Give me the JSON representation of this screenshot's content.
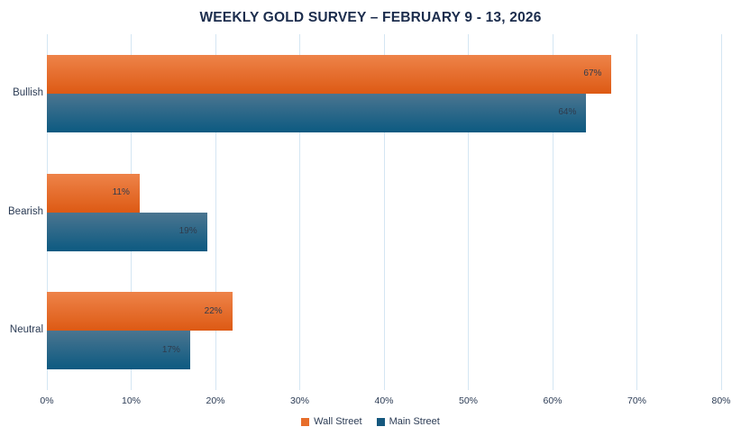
{
  "chart_data": {
    "type": "bar",
    "orientation": "horizontal",
    "title": "WEEKLY GOLD SURVEY – FEBRUARY 9 - 13, 2026",
    "categories": [
      "Bullish",
      "Bearish",
      "Neutral"
    ],
    "series": [
      {
        "name": "Wall Street",
        "values": [
          67,
          11,
          22
        ],
        "color_top": "#ee8349",
        "color_bottom": "#dd5a14",
        "legend_color": "#e76e2b"
      },
      {
        "name": "Main Street",
        "values": [
          64,
          19,
          17
        ],
        "color_top": "#4b7590",
        "color_bottom": "#0c5a81",
        "legend_color": "#15587e"
      }
    ],
    "value_suffix": "%",
    "xlabel": "",
    "ylabel": "",
    "xlim": [
      0,
      80
    ],
    "x_tick_values": [
      0,
      10,
      20,
      30,
      40,
      50,
      60,
      70,
      80
    ],
    "x_ticks": [
      "0%",
      "10%",
      "20%",
      "30%",
      "40%",
      "50%",
      "60%",
      "70%",
      "80%"
    ],
    "grid": true,
    "gridline_color": "#d4e6f3",
    "title_color": "#1c2d4d",
    "axis_text_color": "#2c3c55",
    "bar_label_color": "#2f3b4c",
    "legend_position": "bottom-center"
  }
}
